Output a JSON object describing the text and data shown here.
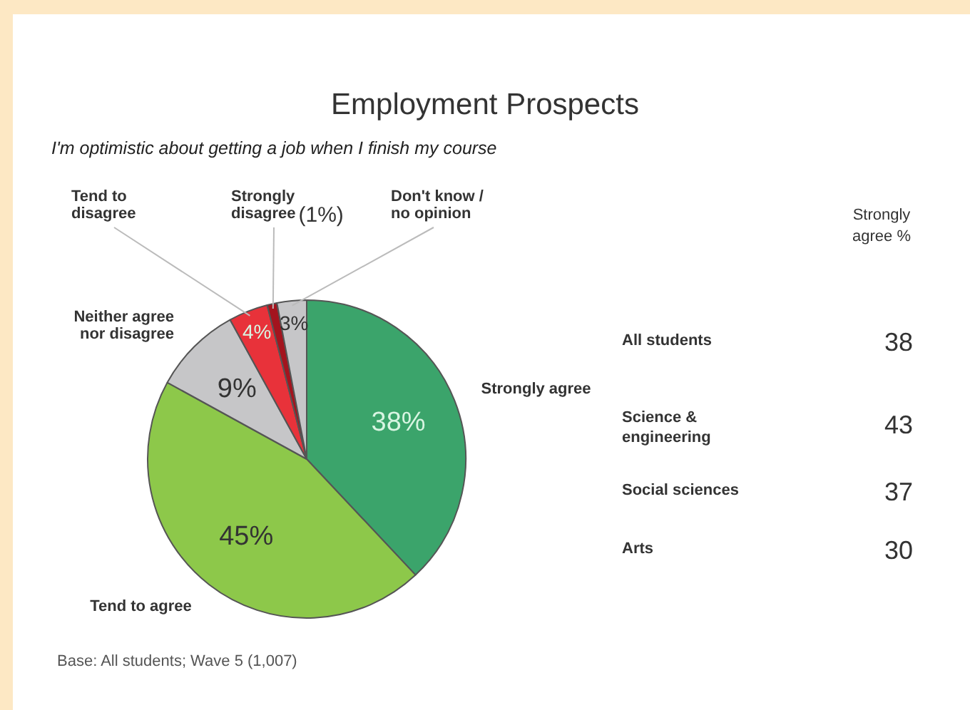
{
  "chart_data": [
    {
      "type": "pie",
      "title": "Employment Prospects",
      "subtitle": "I'm optimistic about getting a job when I finish my course",
      "categories": [
        "Strongly agree",
        "Tend to agree",
        "Neither agree nor disagree",
        "Tend to disagree",
        "Strongly disagree",
        "Don't know / no opinion"
      ],
      "values": [
        38,
        45,
        9,
        4,
        1,
        3
      ],
      "colors": [
        "#3ba46b",
        "#8dc84a",
        "#c6c6c8",
        "#e8323a",
        "#a3141e",
        "#c6c6c8"
      ],
      "value_labels": [
        "38%",
        "45%",
        "9%",
        "4%",
        "(1%)",
        "3%"
      ],
      "annotations": [
        "Base: All students; Wave 5 (1,007)"
      ],
      "legend": false
    },
    {
      "type": "other",
      "title": "Strongly agree %",
      "categories": [
        "All students",
        "Science & engineering",
        "Social sciences",
        "Arts"
      ],
      "values": [
        38,
        43,
        37,
        30
      ],
      "data_labels": true
    }
  ]
}
